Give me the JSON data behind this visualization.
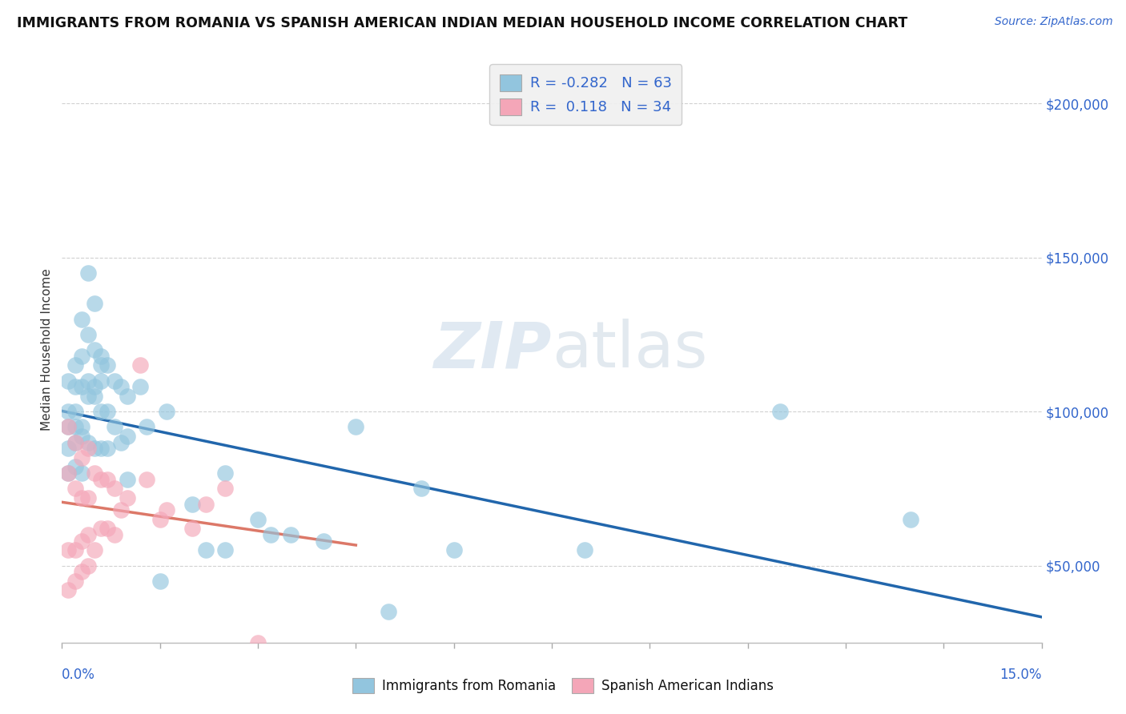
{
  "title": "IMMIGRANTS FROM ROMANIA VS SPANISH AMERICAN INDIAN MEDIAN HOUSEHOLD INCOME CORRELATION CHART",
  "source": "Source: ZipAtlas.com",
  "ylabel": "Median Household Income",
  "xmin": 0.0,
  "xmax": 0.15,
  "ymin": 25000,
  "ymax": 215000,
  "yticks": [
    50000,
    100000,
    150000,
    200000
  ],
  "ytick_labels": [
    "$50,000",
    "$100,000",
    "$150,000",
    "$200,000"
  ],
  "color_blue": "#92c5de",
  "color_pink": "#f4a6b8",
  "color_blue_line": "#2166ac",
  "color_pink_line": "#d6604d",
  "romania_x": [
    0.001,
    0.001,
    0.001,
    0.001,
    0.001,
    0.002,
    0.002,
    0.002,
    0.002,
    0.002,
    0.003,
    0.003,
    0.003,
    0.003,
    0.003,
    0.004,
    0.004,
    0.004,
    0.004,
    0.005,
    0.005,
    0.005,
    0.005,
    0.006,
    0.006,
    0.006,
    0.006,
    0.007,
    0.007,
    0.007,
    0.008,
    0.008,
    0.009,
    0.009,
    0.01,
    0.01,
    0.01,
    0.012,
    0.013,
    0.015,
    0.016,
    0.02,
    0.022,
    0.025,
    0.025,
    0.03,
    0.032,
    0.035,
    0.04,
    0.045,
    0.05,
    0.055,
    0.06,
    0.08,
    0.11,
    0.13,
    0.002,
    0.003,
    0.004,
    0.005,
    0.006
  ],
  "romania_y": [
    110000,
    100000,
    95000,
    88000,
    80000,
    115000,
    108000,
    100000,
    90000,
    82000,
    130000,
    118000,
    108000,
    95000,
    80000,
    145000,
    125000,
    110000,
    90000,
    135000,
    120000,
    105000,
    88000,
    118000,
    110000,
    100000,
    88000,
    115000,
    100000,
    88000,
    110000,
    95000,
    108000,
    90000,
    105000,
    92000,
    78000,
    108000,
    95000,
    45000,
    100000,
    70000,
    55000,
    80000,
    55000,
    65000,
    60000,
    60000,
    58000,
    95000,
    35000,
    75000,
    55000,
    55000,
    100000,
    65000,
    95000,
    92000,
    105000,
    108000,
    115000
  ],
  "spanish_x": [
    0.001,
    0.001,
    0.001,
    0.002,
    0.002,
    0.002,
    0.003,
    0.003,
    0.003,
    0.004,
    0.004,
    0.004,
    0.005,
    0.005,
    0.006,
    0.006,
    0.007,
    0.007,
    0.008,
    0.008,
    0.009,
    0.01,
    0.012,
    0.013,
    0.015,
    0.016,
    0.02,
    0.022,
    0.025,
    0.03,
    0.001,
    0.002,
    0.003,
    0.004
  ],
  "spanish_y": [
    95000,
    80000,
    55000,
    90000,
    75000,
    55000,
    85000,
    72000,
    58000,
    88000,
    72000,
    60000,
    80000,
    55000,
    78000,
    62000,
    78000,
    62000,
    75000,
    60000,
    68000,
    72000,
    115000,
    78000,
    65000,
    68000,
    62000,
    70000,
    75000,
    25000,
    42000,
    45000,
    48000,
    50000
  ]
}
